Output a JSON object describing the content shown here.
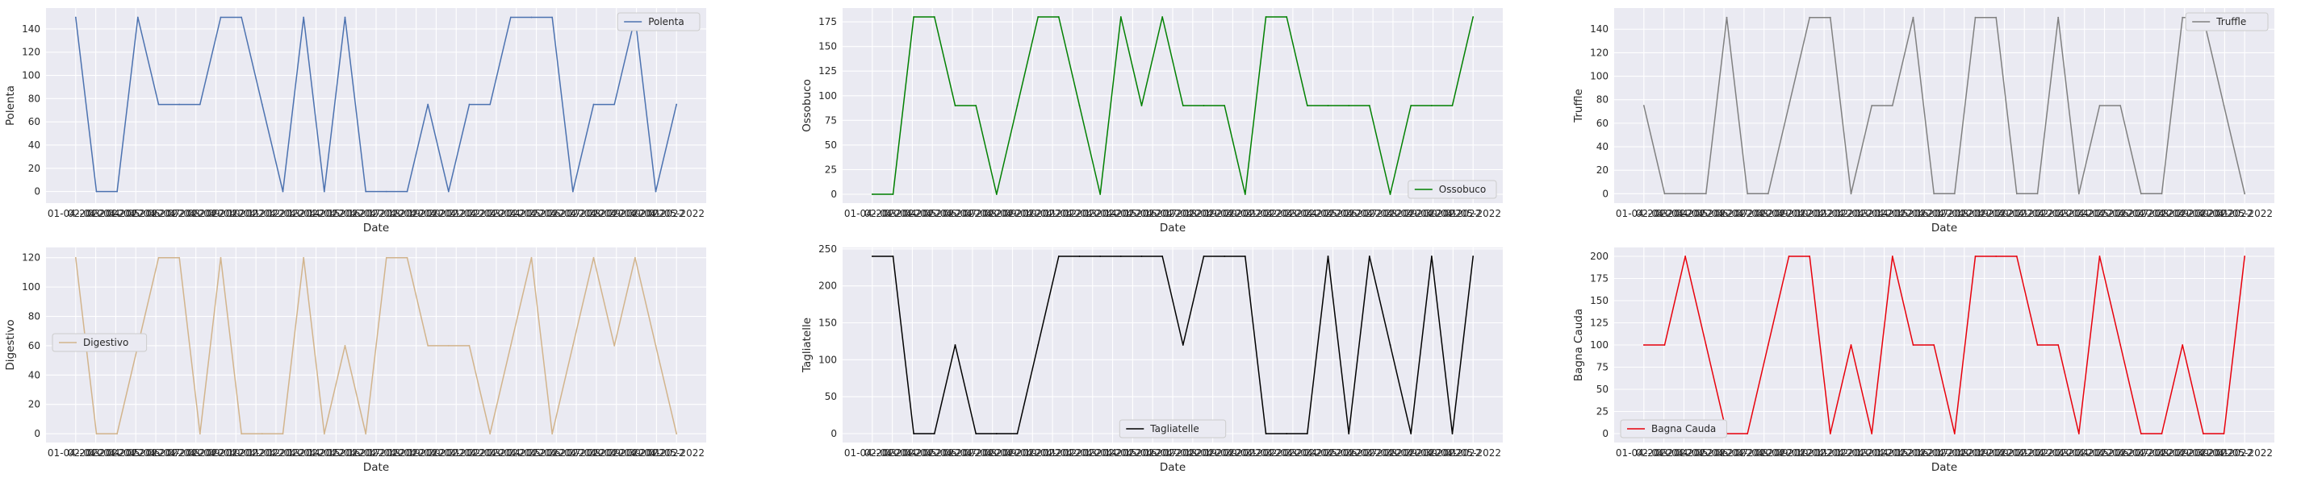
{
  "chart_data": [
    {
      "type": "line",
      "xlabel": "Date",
      "ylabel": "Polenta",
      "ylim": [
        -10,
        158
      ],
      "yticks": [
        0,
        20,
        40,
        60,
        80,
        100,
        120,
        140
      ],
      "grid": true,
      "legend_position": "upper right",
      "x_tick_labels": [
        "01-04-2022",
        "02-04-2022",
        "03-04-2022",
        "04-04-2022",
        "05-04-2022",
        "06-04-2022",
        "07-04-2022",
        "08-04-2022",
        "09-04-2022",
        "10-04-2022",
        "11-04-2022",
        "12-04-2022",
        "13-04-2022",
        "14-04-2022",
        "15-04-2022",
        "16-04-2022",
        "17-04-2022",
        "18-04-2022",
        "19-04-2022",
        "20-04-2022",
        "21-04-2022",
        "22-04-2022",
        "23-04-2022",
        "24-04-2022",
        "25-04-2022",
        "26-04-2022",
        "27-04-2022",
        "28-04-2022",
        "29-04-2022",
        "30-04-2022",
        "01-05-2022"
      ],
      "series": [
        {
          "name": "Polenta",
          "color": "#4c72b0",
          "values": [
            150,
            0,
            0,
            150,
            75,
            75,
            75,
            150,
            150,
            75,
            0,
            150,
            0,
            150,
            0,
            0,
            0,
            75,
            0,
            75,
            75,
            150,
            150,
            150,
            0,
            75,
            75,
            150,
            0,
            75
          ]
        }
      ]
    },
    {
      "type": "line",
      "xlabel": "Date",
      "ylabel": "Ossobuco",
      "ylim": [
        -9,
        189
      ],
      "yticks": [
        0,
        25,
        50,
        75,
        100,
        125,
        150,
        175
      ],
      "grid": true,
      "legend_position": "lower right",
      "x_tick_labels": [
        "01-04-2022",
        "02-04-2022",
        "03-04-2022",
        "04-04-2022",
        "05-04-2022",
        "06-04-2022",
        "07-04-2022",
        "08-04-2022",
        "09-04-2022",
        "10-04-2022",
        "11-04-2022",
        "12-04-2022",
        "13-04-2022",
        "14-04-2022",
        "15-04-2022",
        "16-04-2022",
        "17-04-2022",
        "18-04-2022",
        "19-04-2022",
        "20-04-2022",
        "21-04-2022",
        "22-04-2022",
        "23-04-2022",
        "24-04-2022",
        "25-04-2022",
        "26-04-2022",
        "27-04-2022",
        "28-04-2022",
        "29-04-2022",
        "30-04-2022",
        "01-05-2022"
      ],
      "series": [
        {
          "name": "Ossobuco",
          "color": "#008000",
          "values": [
            0,
            0,
            180,
            180,
            90,
            90,
            0,
            90,
            180,
            180,
            90,
            0,
            180,
            90,
            180,
            90,
            90,
            90,
            0,
            180,
            180,
            90,
            90,
            90,
            90,
            0,
            90,
            90,
            90,
            180
          ]
        }
      ]
    },
    {
      "type": "line",
      "xlabel": "Date",
      "ylabel": "Truffle",
      "ylim": [
        -8,
        158
      ],
      "yticks": [
        0,
        20,
        40,
        60,
        80,
        100,
        120,
        140
      ],
      "grid": true,
      "legend_position": "upper right",
      "x_tick_labels": [
        "01-04-2022",
        "02-04-2022",
        "03-04-2022",
        "04-04-2022",
        "05-04-2022",
        "06-04-2022",
        "07-04-2022",
        "08-04-2022",
        "09-04-2022",
        "10-04-2022",
        "11-04-2022",
        "12-04-2022",
        "13-04-2022",
        "14-04-2022",
        "15-04-2022",
        "16-04-2022",
        "17-04-2022",
        "18-04-2022",
        "19-04-2022",
        "20-04-2022",
        "21-04-2022",
        "22-04-2022",
        "23-04-2022",
        "24-04-2022",
        "25-04-2022",
        "26-04-2022",
        "27-04-2022",
        "28-04-2022",
        "29-04-2022",
        "30-04-2022",
        "01-05-2022"
      ],
      "series": [
        {
          "name": "Truffle",
          "color": "#808080",
          "values": [
            75,
            0,
            0,
            0,
            150,
            0,
            0,
            75,
            150,
            150,
            0,
            75,
            75,
            150,
            0,
            0,
            150,
            150,
            0,
            0,
            150,
            0,
            75,
            75,
            0,
            0,
            150,
            150,
            75,
            0
          ]
        }
      ]
    },
    {
      "type": "line",
      "xlabel": "Date",
      "ylabel": "Digestivo",
      "ylim": [
        -6,
        127
      ],
      "yticks": [
        0,
        20,
        40,
        60,
        80,
        100,
        120
      ],
      "grid": true,
      "legend_position": "center left",
      "x_tick_labels": [
        "01-04-2022",
        "02-04-2022",
        "03-04-2022",
        "04-04-2022",
        "05-04-2022",
        "06-04-2022",
        "07-04-2022",
        "08-04-2022",
        "09-04-2022",
        "10-04-2022",
        "11-04-2022",
        "12-04-2022",
        "13-04-2022",
        "14-04-2022",
        "15-04-2022",
        "16-04-2022",
        "17-04-2022",
        "18-04-2022",
        "19-04-2022",
        "20-04-2022",
        "21-04-2022",
        "22-04-2022",
        "23-04-2022",
        "24-04-2022",
        "25-04-2022",
        "26-04-2022",
        "27-04-2022",
        "28-04-2022",
        "29-04-2022",
        "30-04-2022",
        "01-05-2022"
      ],
      "series": [
        {
          "name": "Digestivo",
          "color": "#d2b48c",
          "values": [
            120,
            0,
            0,
            60,
            120,
            120,
            0,
            120,
            0,
            0,
            0,
            120,
            0,
            60,
            0,
            120,
            120,
            60,
            60,
            60,
            0,
            60,
            120,
            0,
            60,
            120,
            60,
            120,
            60,
            0
          ]
        }
      ]
    },
    {
      "type": "line",
      "xlabel": "Date",
      "ylabel": "Tagliatelle",
      "ylim": [
        -12,
        252
      ],
      "yticks": [
        0,
        50,
        100,
        150,
        200,
        250
      ],
      "grid": true,
      "legend_position": "lower center",
      "x_tick_labels": [
        "01-04-2022",
        "02-04-2022",
        "03-04-2022",
        "04-04-2022",
        "05-04-2022",
        "06-04-2022",
        "07-04-2022",
        "08-04-2022",
        "09-04-2022",
        "10-04-2022",
        "11-04-2022",
        "12-04-2022",
        "13-04-2022",
        "14-04-2022",
        "15-04-2022",
        "16-04-2022",
        "17-04-2022",
        "18-04-2022",
        "19-04-2022",
        "20-04-2022",
        "21-04-2022",
        "22-04-2022",
        "23-04-2022",
        "24-04-2022",
        "25-04-2022",
        "26-04-2022",
        "27-04-2022",
        "28-04-2022",
        "29-04-2022",
        "30-04-2022",
        "01-05-2022"
      ],
      "series": [
        {
          "name": "Tagliatelle",
          "color": "#000000",
          "values": [
            240,
            240,
            0,
            0,
            120,
            0,
            0,
            0,
            120,
            240,
            240,
            240,
            240,
            240,
            240,
            120,
            240,
            240,
            240,
            0,
            0,
            0,
            240,
            0,
            240,
            120,
            0,
            240,
            0,
            240
          ]
        }
      ]
    },
    {
      "type": "line",
      "xlabel": "Date",
      "ylabel": "Bagna Cauda",
      "ylim": [
        -10,
        210
      ],
      "yticks": [
        0,
        25,
        50,
        75,
        100,
        125,
        150,
        175,
        200
      ],
      "grid": true,
      "legend_position": "lower left",
      "x_tick_labels": [
        "01-04-2022",
        "02-04-2022",
        "03-04-2022",
        "04-04-2022",
        "05-04-2022",
        "06-04-2022",
        "07-04-2022",
        "08-04-2022",
        "09-04-2022",
        "10-04-2022",
        "11-04-2022",
        "12-04-2022",
        "13-04-2022",
        "14-04-2022",
        "15-04-2022",
        "16-04-2022",
        "17-04-2022",
        "18-04-2022",
        "19-04-2022",
        "20-04-2022",
        "21-04-2022",
        "22-04-2022",
        "23-04-2022",
        "24-04-2022",
        "25-04-2022",
        "26-04-2022",
        "27-04-2022",
        "28-04-2022",
        "29-04-2022",
        "30-04-2022",
        "01-05-2022"
      ],
      "series": [
        {
          "name": "Bagna Cauda",
          "color": "#e8000b",
          "values": [
            100,
            100,
            200,
            100,
            0,
            0,
            100,
            200,
            200,
            0,
            100,
            0,
            200,
            100,
            100,
            0,
            200,
            200,
            200,
            100,
            100,
            0,
            200,
            100,
            0,
            0,
            100,
            0,
            0,
            200
          ]
        }
      ]
    }
  ]
}
